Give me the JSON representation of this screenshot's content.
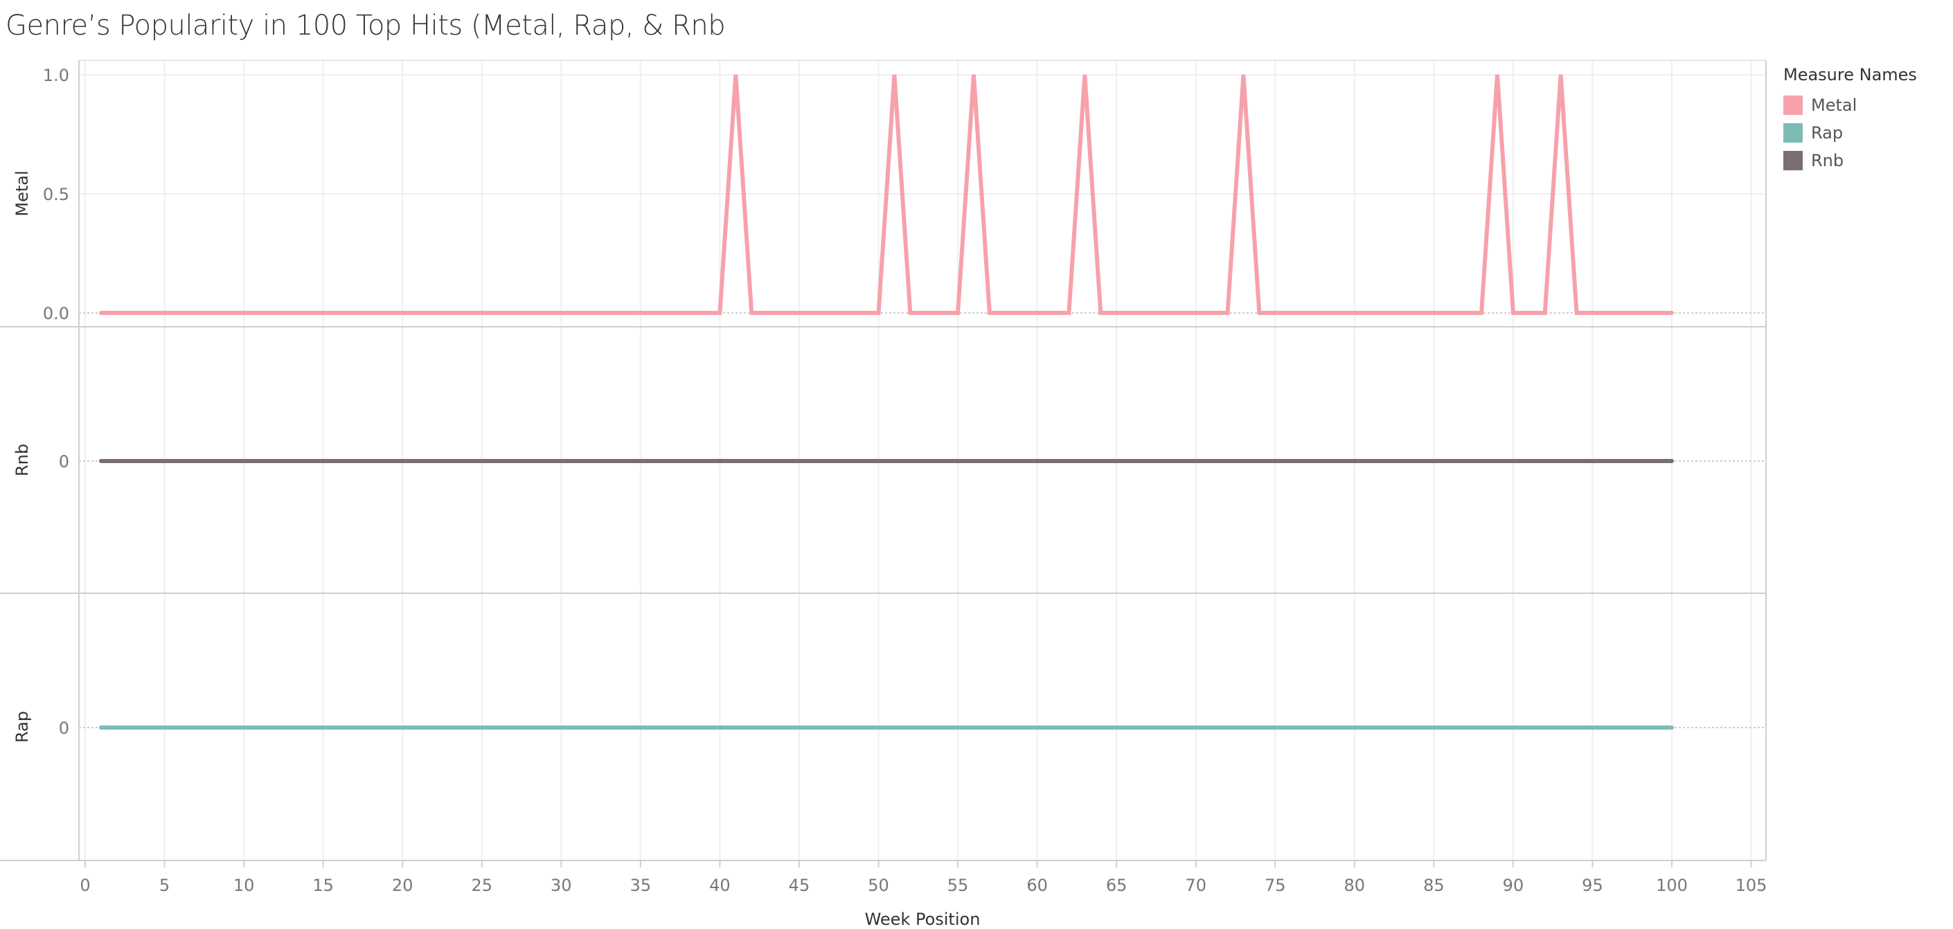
{
  "title": "Genre’s Popularity in 100 Top Hits (Metal, Rap, & Rnb",
  "legend": {
    "title": "Measure Names",
    "items": [
      {
        "label": "Metal",
        "color": "#f7a1aa"
      },
      {
        "label": "Rap",
        "color": "#7dbcb4"
      },
      {
        "label": "Rnb",
        "color": "#7a6f6f"
      }
    ]
  },
  "chart_data": {
    "type": "line",
    "xlabel": "Week Position",
    "xlim": [
      0,
      105
    ],
    "xticks": [
      0,
      5,
      10,
      15,
      20,
      25,
      30,
      35,
      40,
      45,
      50,
      55,
      60,
      65,
      70,
      75,
      80,
      85,
      90,
      95,
      100,
      105
    ],
    "x_range": [
      1,
      100
    ],
    "panels": [
      {
        "name": "Metal",
        "ylabel": "Metal",
        "color": "#f7a1aa",
        "ylim": [
          0,
          1
        ],
        "yticks": [
          "0.0",
          "0.5",
          "1.0"
        ],
        "ytick_values": [
          0,
          0.5,
          1.0
        ],
        "peaks_at_value_1": [
          41,
          51,
          56,
          63,
          73,
          89,
          93
        ],
        "baseline": 0
      },
      {
        "name": "Rnb",
        "ylabel": "Rnb",
        "color": "#7a6f6f",
        "yticks": [
          "0"
        ],
        "ytick_values": [
          0
        ],
        "constant": 0
      },
      {
        "name": "Rap",
        "ylabel": "Rap",
        "color": "#7dbcb4",
        "yticks": [
          "0"
        ],
        "ytick_values": [
          0
        ],
        "constant": 0
      }
    ]
  }
}
